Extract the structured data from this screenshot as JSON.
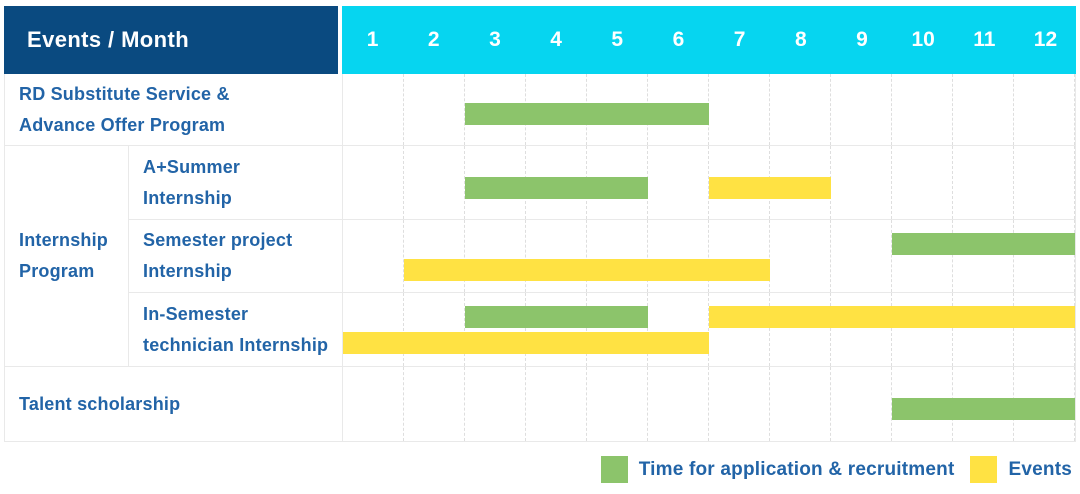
{
  "header": {
    "title": "Events / Month",
    "months": [
      "1",
      "2",
      "3",
      "4",
      "5",
      "6",
      "7",
      "8",
      "9",
      "10",
      "11",
      "12"
    ]
  },
  "chart_data": {
    "type": "bar",
    "variant": "gantt",
    "title": "Events / Month",
    "x_axis": {
      "unit": "month",
      "range": [
        1,
        12
      ],
      "ticks": [
        "1",
        "2",
        "3",
        "4",
        "5",
        "6",
        "7",
        "8",
        "9",
        "10",
        "11",
        "12"
      ]
    },
    "grid": "dashed-vertical-month-lines",
    "rows": [
      {
        "group": "",
        "label": "RD Substitute Service & Advance Offer Program",
        "label_lines": "RD Substitute Service &\nAdvance Offer Program",
        "lines": [
          [
            {
              "series": "application",
              "start_month": 3,
              "end_month": 6
            }
          ]
        ]
      },
      {
        "group": "Internship Program",
        "label": "A+Summer Internship",
        "label_lines": "A+Summer\nInternship",
        "lines": [
          [
            {
              "series": "application",
              "start_month": 3,
              "end_month": 5
            },
            {
              "series": "events",
              "start_month": 7,
              "end_month": 8
            }
          ]
        ]
      },
      {
        "group": "Internship Program",
        "label": "Semester project Internship",
        "label_lines": "Semester project\nInternship",
        "lines": [
          [
            {
              "series": "application",
              "start_month": 10,
              "end_month": 12
            }
          ],
          [
            {
              "series": "events",
              "start_month": 2,
              "end_month": 7
            }
          ]
        ]
      },
      {
        "group": "Internship Program",
        "label": "In-Semester technician Internship",
        "label_lines": "In-Semester\ntechnician Internship",
        "lines": [
          [
            {
              "series": "application",
              "start_month": 3,
              "end_month": 5
            },
            {
              "series": "events",
              "start_month": 7,
              "end_month": 12
            }
          ],
          [
            {
              "series": "events",
              "start_month": 1,
              "end_month": 6
            }
          ]
        ]
      },
      {
        "group": "",
        "label": "Talent scholarship",
        "label_lines": "Talent scholarship",
        "lines": [
          [
            {
              "series": "application",
              "start_month": 10,
              "end_month": 12
            }
          ]
        ]
      }
    ],
    "group_label": "Internship Program",
    "group_label_lines": "Internship\nProgram",
    "legend": [
      {
        "series": "application",
        "label": "Time for application & recruitment",
        "color": "#8cc46b"
      },
      {
        "series": "events",
        "label": "Events",
        "color": "#ffe243"
      }
    ],
    "legend_position": "bottom-right"
  },
  "colors": {
    "header_bg": "#0a4a80",
    "month_header_bg": "#06d5f0",
    "header_text": "#ffffff",
    "label_text": "#2264a7",
    "bar_application": "#8cc46b",
    "bar_events": "#ffe243",
    "grid_line": "#e9e9e9"
  }
}
